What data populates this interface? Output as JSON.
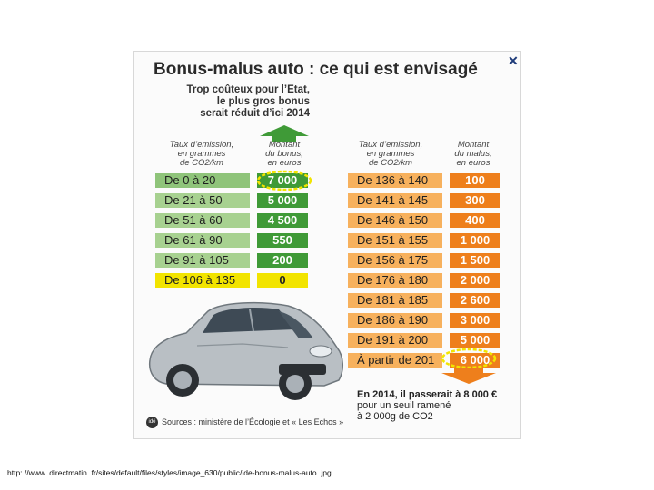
{
  "image": {
    "title": "Bonus-malus auto : ce qui est envisagé",
    "subtitle": [
      "Trop coûteux pour l’Etat,",
      "le plus gros bonus",
      "serait réduit d’ici 2014"
    ],
    "close_label": "✕",
    "headers": {
      "emission_left": [
        "Taux d’emission,",
        "en grammes",
        "de CO2/km"
      ],
      "bonus": [
        "Montant",
        "du bonus,",
        "en euros"
      ],
      "emission_right": [
        "Taux d’emission,",
        "en grammes",
        "de CO2/km"
      ],
      "malus": [
        "Montant",
        "du malus,",
        "en euros"
      ]
    },
    "bonus_rows": [
      {
        "range": "De 0 à 20",
        "amount": "7 000"
      },
      {
        "range": "De 21 à 50",
        "amount": "5 000"
      },
      {
        "range": "De 51 à 60",
        "amount": "4 500"
      },
      {
        "range": "De 61 à 90",
        "amount": "550"
      },
      {
        "range": "De 91 à 105",
        "amount": "200"
      },
      {
        "range": "De 106 à 135",
        "amount": "0"
      }
    ],
    "malus_rows": [
      {
        "range": "De 136 à 140",
        "amount": "100"
      },
      {
        "range": "De 141 à 145",
        "amount": "300"
      },
      {
        "range": "De 146 à 150",
        "amount": "400"
      },
      {
        "range": "De 151 à 155",
        "amount": "1 000"
      },
      {
        "range": "De 156 à 175",
        "amount": "1 500"
      },
      {
        "range": "De 176 à 180",
        "amount": "2 000"
      },
      {
        "range": "De 181 à 185",
        "amount": "2 600"
      },
      {
        "range": "De 186 à 190",
        "amount": "3 000"
      },
      {
        "range": "De 191 à 200",
        "amount": "5 000"
      },
      {
        "range": "À partir de 201",
        "amount": "6 000"
      }
    ],
    "note": [
      "En 2014, il passerait à 8 000 €",
      "pour un seuil ramené",
      "à 2 000g de CO2"
    ],
    "sources": "Sources : ministère de l’Écologie et « Les Echos »",
    "logo_text": "idé",
    "colors": {
      "bonus_dark": "#3f9a37",
      "bonus_range_bg": [
        "#8fc47a",
        "#a7d190",
        "#a7d190",
        "#a7d190",
        "#a7d190",
        "#f2e400"
      ],
      "bonus_amount_bg": [
        "#3f9a37",
        "#3f9a37",
        "#3f9a37",
        "#3f9a37",
        "#3f9a37",
        "#f2e400"
      ],
      "malus_range_bg": "#f7b15d",
      "malus_amount_bg": "#ee7f1c",
      "highlight_circle": "#f2e400"
    }
  },
  "caption": "http: //www. directmatin. fr/sites/default/files/styles/image_630/public/ide-bonus-malus-auto. jpg"
}
